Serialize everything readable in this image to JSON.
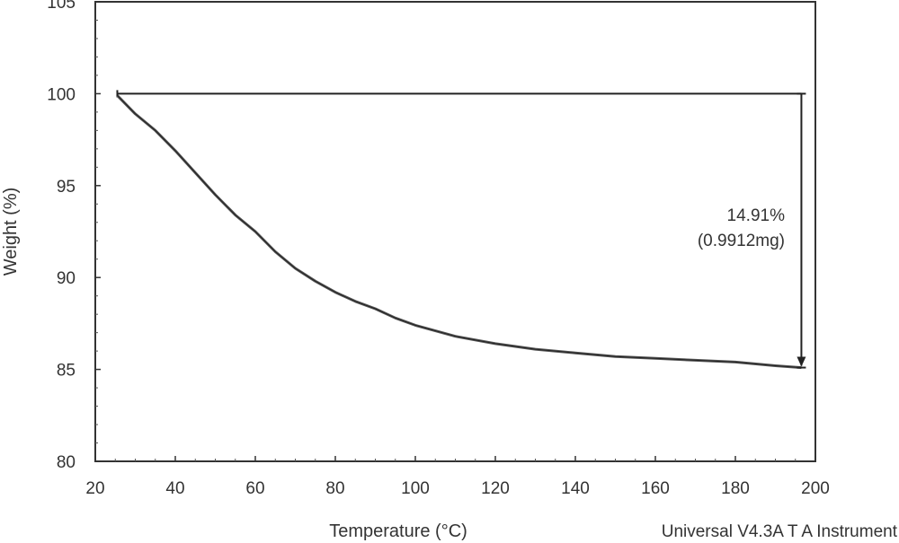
{
  "chart_data": {
    "type": "line",
    "xlabel": "Temperature (°C)",
    "ylabel": "Weight (%)",
    "xlim": [
      20,
      200
    ],
    "ylim": [
      80,
      105
    ],
    "xticks": [
      20,
      40,
      60,
      80,
      100,
      120,
      140,
      160,
      180,
      200
    ],
    "yticks": [
      80,
      85,
      90,
      95,
      100,
      105
    ],
    "grid": false,
    "series": [
      {
        "x": [
          25.5,
          30,
          35,
          40,
          45,
          50,
          55,
          60,
          65,
          70,
          75,
          80,
          85,
          90,
          95,
          100,
          110,
          120,
          130,
          140,
          150,
          160,
          170,
          180,
          190,
          196.5
        ],
        "values": [
          99.9,
          98.9,
          98.0,
          96.9,
          95.7,
          94.5,
          93.4,
          92.5,
          91.4,
          90.5,
          89.8,
          89.2,
          88.7,
          88.3,
          87.8,
          87.4,
          86.8,
          86.4,
          86.1,
          85.9,
          85.7,
          85.6,
          85.5,
          85.4,
          85.2,
          85.1
        ]
      }
    ],
    "reference_line": {
      "y": 100,
      "x_start": 25.5,
      "x_end": 196.5
    },
    "step_marker": {
      "x": 196.5,
      "from": 100,
      "to": 85.1
    },
    "annotation": {
      "line1": "14.91%",
      "line2": "(0.9912mg)"
    }
  },
  "footer": "Universal V4.3A T A Instrument"
}
